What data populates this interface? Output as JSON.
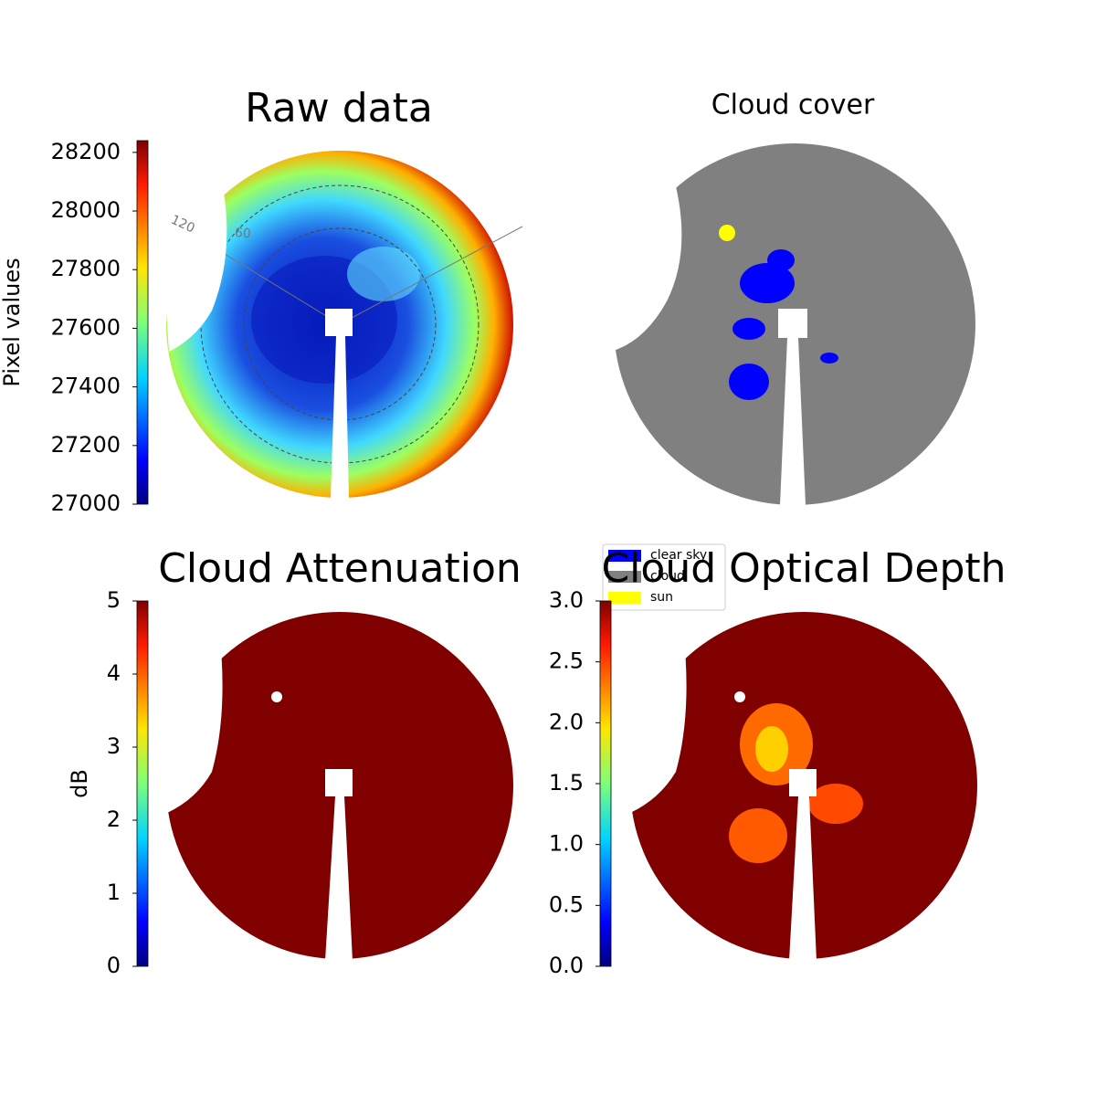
{
  "chart_data": [
    {
      "type": "image",
      "title": "Raw data",
      "colorbar": {
        "label": "Pixel values",
        "lim": [
          27000,
          28240
        ],
        "ticks": [
          27000,
          27200,
          27400,
          27600,
          27800,
          28000,
          28200
        ]
      },
      "annotations": [
        "120",
        "60"
      ]
    },
    {
      "type": "image",
      "title": "Cloud cover",
      "legend": {
        "entries": [
          {
            "name": "clear sky",
            "color": "#0000ff"
          },
          {
            "name": "cloud",
            "color": "#808080"
          },
          {
            "name": "sun",
            "color": "#ffff00"
          }
        ]
      }
    },
    {
      "type": "image",
      "title": "Cloud Attenuation",
      "colorbar": {
        "label": "dB",
        "lim": [
          0,
          5
        ],
        "ticks": [
          0,
          1,
          2,
          3,
          4,
          5
        ]
      }
    },
    {
      "type": "image",
      "title": "Cloud Optical Depth",
      "colorbar": {
        "lim": [
          0,
          3
        ],
        "ticks": [
          {
            "value": 0,
            "label": "0.0"
          },
          {
            "value": 0.5,
            "label": "0.5"
          },
          {
            "value": 1,
            "label": "1.0"
          },
          {
            "value": 1.5,
            "label": "1.5"
          },
          {
            "value": 2,
            "label": "2.0"
          },
          {
            "value": 2.5,
            "label": "2.5"
          },
          {
            "value": 3,
            "label": "3.0"
          }
        ]
      }
    }
  ]
}
